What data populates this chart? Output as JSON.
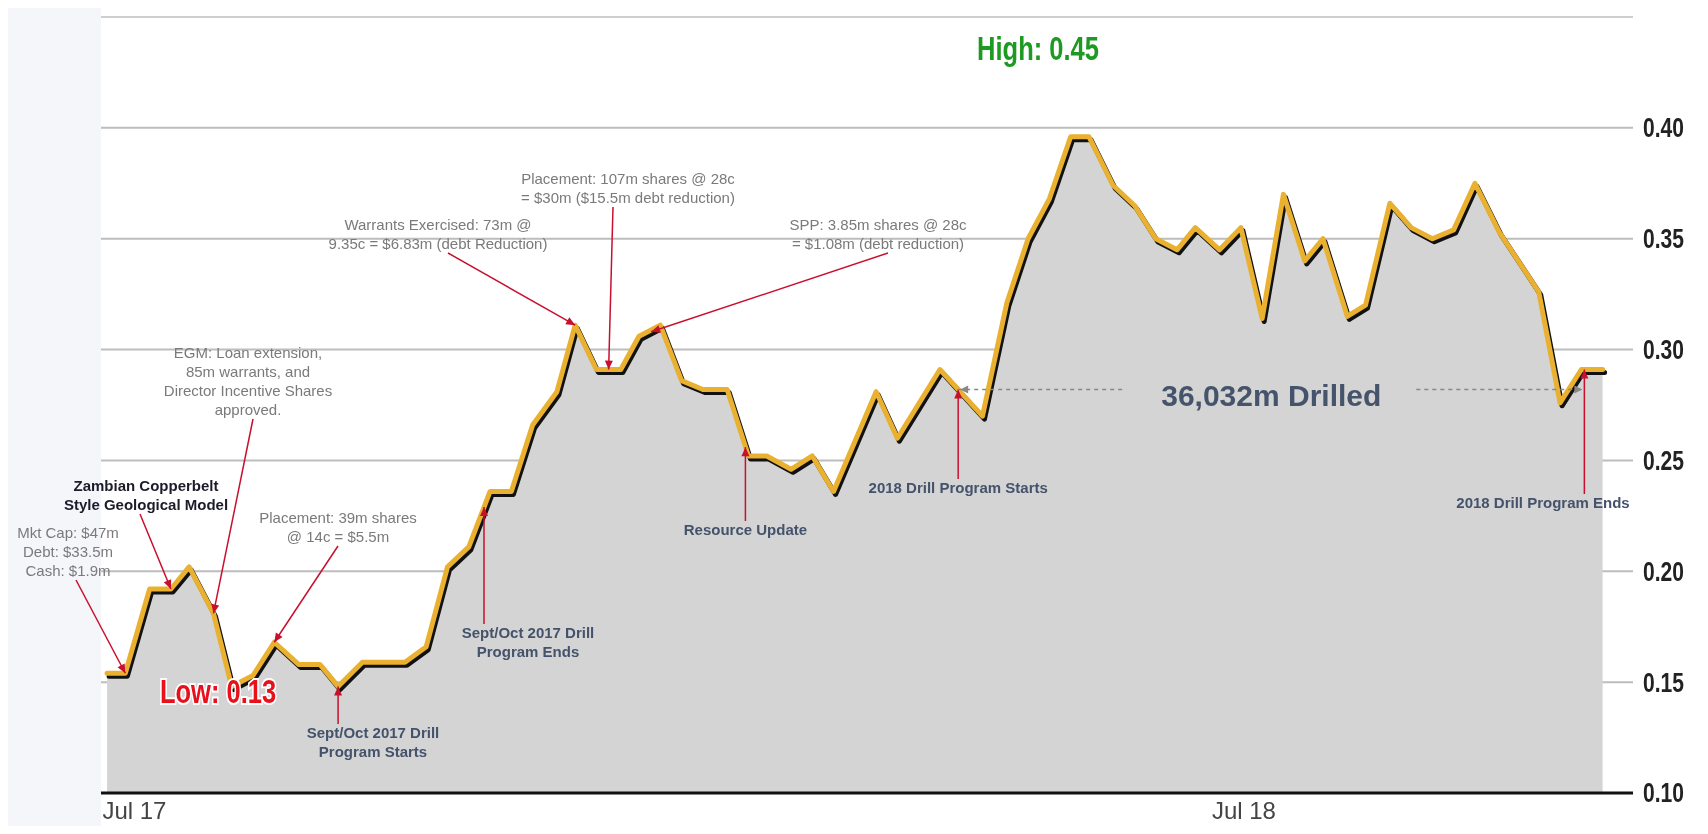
{
  "chart_data": {
    "type": "area",
    "x": [
      "2017-06-22",
      "2017-06-28",
      "2017-07-06",
      "2017-07-13",
      "2017-07-19",
      "2017-07-27",
      "2017-08-02",
      "2017-08-09",
      "2017-08-16",
      "2017-08-24",
      "2017-08-31",
      "2017-09-06",
      "2017-09-14",
      "2017-09-28",
      "2017-10-05",
      "2017-10-12",
      "2017-10-19",
      "2017-10-26",
      "2017-11-02",
      "2017-11-09",
      "2017-11-17",
      "2017-11-23",
      "2017-11-30",
      "2017-12-08",
      "2017-12-14",
      "2017-12-21",
      "2017-12-28",
      "2018-01-04",
      "2018-01-12",
      "2018-01-19",
      "2018-01-25",
      "2018-02-02",
      "2018-02-09",
      "2018-02-16",
      "2018-03-02",
      "2018-03-09",
      "2018-03-23",
      "2018-04-06",
      "2018-04-14",
      "2018-04-21",
      "2018-04-28",
      "2018-05-05",
      "2018-05-11",
      "2018-05-19",
      "2018-05-26",
      "2018-06-02",
      "2018-06-09",
      "2018-06-15",
      "2018-06-23",
      "2018-06-30",
      "2018-07-07",
      "2018-07-14",
      "2018-07-21",
      "2018-07-27",
      "2018-08-04",
      "2018-08-10",
      "2018-08-18",
      "2018-08-25",
      "2018-09-01",
      "2018-09-08",
      "2018-09-15",
      "2018-09-23",
      "2018-10-06",
      "2018-10-13",
      "2018-10-20",
      "2018-10-27"
    ],
    "series": [
      {
        "color": "#e9b12f",
        "values": [
          0.154,
          0.154,
          0.192,
          0.192,
          0.202,
          0.181,
          0.148,
          0.153,
          0.168,
          0.158,
          0.158,
          0.148,
          0.159,
          0.159,
          0.166,
          0.202,
          0.211,
          0.236,
          0.236,
          0.266,
          0.281,
          0.311,
          0.291,
          0.291,
          0.306,
          0.311,
          0.286,
          0.282,
          0.282,
          0.252,
          0.252,
          0.246,
          0.252,
          0.236,
          0.281,
          0.26,
          0.291,
          0.27,
          0.321,
          0.35,
          0.368,
          0.396,
          0.396,
          0.374,
          0.365,
          0.35,
          0.345,
          0.355,
          0.345,
          0.355,
          0.314,
          0.37,
          0.34,
          0.35,
          0.315,
          0.32,
          0.366,
          0.355,
          0.35,
          0.354,
          0.375,
          0.353,
          0.326,
          0.276,
          0.291,
          0.291
        ]
      }
    ],
    "xlim": [
      "2017-06-20",
      "2018-11-06"
    ],
    "xticks": [
      {
        "value": "2017-07-01",
        "label": "Jul 17"
      },
      {
        "value": "2018-07-01",
        "label": "Jul 18"
      }
    ],
    "ylim": [
      0.1,
      0.45
    ],
    "yticks": [
      {
        "value": 0.1,
        "label": "0.10"
      },
      {
        "value": 0.15,
        "label": "0.15"
      },
      {
        "value": 0.2,
        "label": "0.20"
      },
      {
        "value": 0.25,
        "label": "0.25"
      },
      {
        "value": 0.3,
        "label": "0.30"
      },
      {
        "value": 0.35,
        "label": "0.35"
      },
      {
        "value": 0.4,
        "label": "0.40"
      }
    ],
    "grid": "y",
    "annotations": [
      {
        "text": "Mkt Cap: $47m Debt: $33.5m Cash: $1.9m",
        "x": "2017-06-28",
        "y": 0.154
      },
      {
        "text": "Zambian Copperbelt Style Geological Model",
        "x": "2017-07-13",
        "y": 0.192
      },
      {
        "text": "EGM: Loan extension, 85m warrants, and Director Incentive Shares approved.",
        "x": "2017-07-27",
        "y": 0.181
      },
      {
        "text": "Placement: 39m shares @ 14c = $5.5m",
        "x": "2017-08-16",
        "y": 0.168
      },
      {
        "text": "Sept/Oct 2017 Drill Program Starts",
        "x": "2017-09-06",
        "y": 0.148
      },
      {
        "text": "Sept/Oct 2017 Drill Program Ends",
        "x": "2017-10-24",
        "y": 0.229
      },
      {
        "text": "Warrants Exercised: 73m @ 9.35c = $6.83m (debt Reduction)",
        "x": "2017-11-23",
        "y": 0.311
      },
      {
        "text": "Placement: 107m shares @ 28c = $30m ($15.5m debt reduction)",
        "x": "2017-12-04",
        "y": 0.291
      },
      {
        "text": "SPP: 3.85m shares @ 28c = $1.08m (debt reduction)",
        "x": "2017-12-18",
        "y": 0.308
      },
      {
        "text": "Resource Update",
        "x": "2018-01-18",
        "y": 0.256
      },
      {
        "text": "2018 Drill Program Starts",
        "x": "2018-03-29",
        "y": 0.282
      },
      {
        "text": "2018 Drill Program Ends",
        "x": "2018-10-21",
        "y": 0.291
      },
      {
        "text": "36,032m Drilled",
        "x": "2018-03-29",
        "y": 0.282
      },
      "High: 0.45",
      "Low: 0.13"
    ]
  }
}
